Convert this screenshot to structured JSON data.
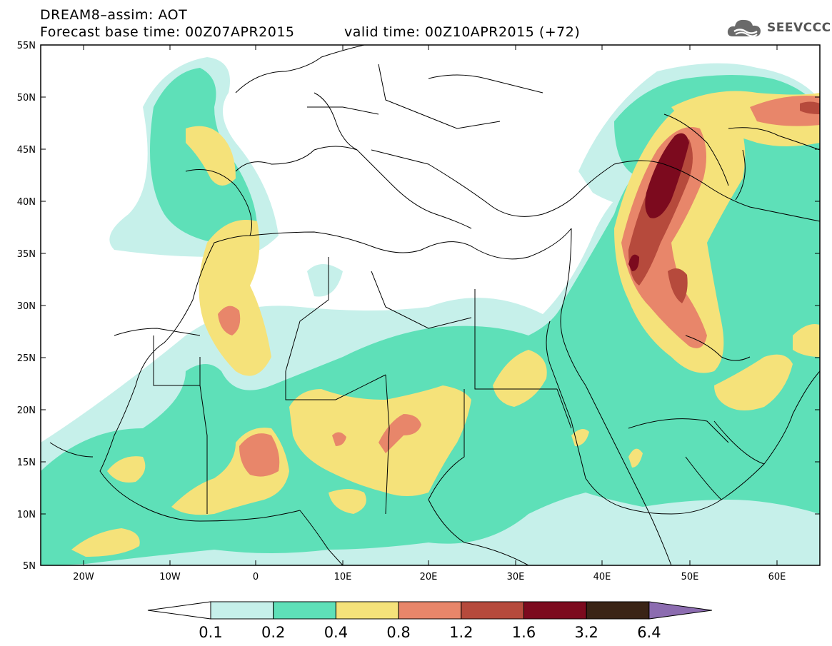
{
  "title": {
    "line1": "DREAM8–assim: AOT",
    "line2_left": "Forecast base time: 00Z07APR2015",
    "line2_right": "valid time: 00Z10APR2015 (+72)"
  },
  "logo": {
    "text": "SEEVCCC",
    "icon": "cloud-icon"
  },
  "map": {
    "lat_labels": [
      "55N",
      "50N",
      "45N",
      "40N",
      "35N",
      "30N",
      "25N",
      "20N",
      "15N",
      "10N",
      "5N"
    ],
    "lon_labels": [
      "20W",
      "10W",
      "0",
      "10E",
      "20E",
      "30E",
      "40E",
      "50E",
      "60E"
    ]
  },
  "colorbar": {
    "labels": [
      "0.1",
      "0.2",
      "0.4",
      "0.8",
      "1.2",
      "1.6",
      "3.2",
      "6.4"
    ],
    "colors": [
      "#ffffff",
      "#c6f0ea",
      "#5ee0b8",
      "#f5e27a",
      "#e8866a",
      "#b64a3c",
      "#7c0a1e",
      "#3a2416",
      "#8c6cb0"
    ]
  },
  "colors": {
    "lvl1": "#c6f0ea",
    "lvl2": "#5ee0b8",
    "lvl3": "#f5e27a",
    "lvl4": "#e8866a",
    "lvl5": "#b64a3c",
    "lvl6": "#7c0a1e"
  }
}
